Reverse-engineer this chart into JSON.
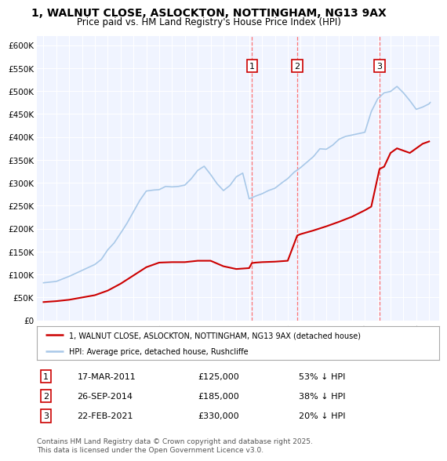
{
  "title": "1, WALNUT CLOSE, ASLOCKTON, NOTTINGHAM, NG13 9AX",
  "subtitle": "Price paid vs. HM Land Registry's House Price Index (HPI)",
  "hpi_color": "#a8c8e8",
  "property_color": "#cc0000",
  "vline_color": "#ff6666",
  "background_color": "#ffffff",
  "plot_bg_color": "#f0f4ff",
  "grid_color": "#ffffff",
  "transactions": [
    {
      "num": 1,
      "date_str": "17-MAR-2011",
      "date_x": 2011.21,
      "price": 125000,
      "pct": "53%",
      "direction": "↓"
    },
    {
      "num": 2,
      "date_str": "26-SEP-2014",
      "date_x": 2014.74,
      "price": 185000,
      "pct": "38%",
      "direction": "↓"
    },
    {
      "num": 3,
      "date_str": "22-FEB-2021",
      "date_x": 2021.14,
      "price": 330000,
      "pct": "20%",
      "direction": "↓"
    }
  ],
  "ylim": [
    0,
    620000
  ],
  "yticks": [
    0,
    50000,
    100000,
    150000,
    200000,
    250000,
    300000,
    350000,
    400000,
    450000,
    500000,
    550000,
    600000
  ],
  "ytick_labels": [
    "£0",
    "£50K",
    "£100K",
    "£150K",
    "£200K",
    "£250K",
    "£300K",
    "£350K",
    "£400K",
    "£450K",
    "£500K",
    "£550K",
    "£600K"
  ],
  "xlim": [
    1994.5,
    2025.8
  ],
  "xticks": [
    1995,
    1996,
    1997,
    1998,
    1999,
    2000,
    2001,
    2002,
    2003,
    2004,
    2005,
    2006,
    2007,
    2008,
    2009,
    2010,
    2011,
    2012,
    2013,
    2014,
    2015,
    2016,
    2017,
    2018,
    2019,
    2020,
    2021,
    2022,
    2023,
    2024,
    2025
  ],
  "legend_property_label": "1, WALNUT CLOSE, ASLOCKTON, NOTTINGHAM, NG13 9AX (detached house)",
  "legend_hpi_label": "HPI: Average price, detached house, Rushcliffe",
  "footnote": "Contains HM Land Registry data © Crown copyright and database right 2025.\nThis data is licensed under the Open Government Licence v3.0."
}
